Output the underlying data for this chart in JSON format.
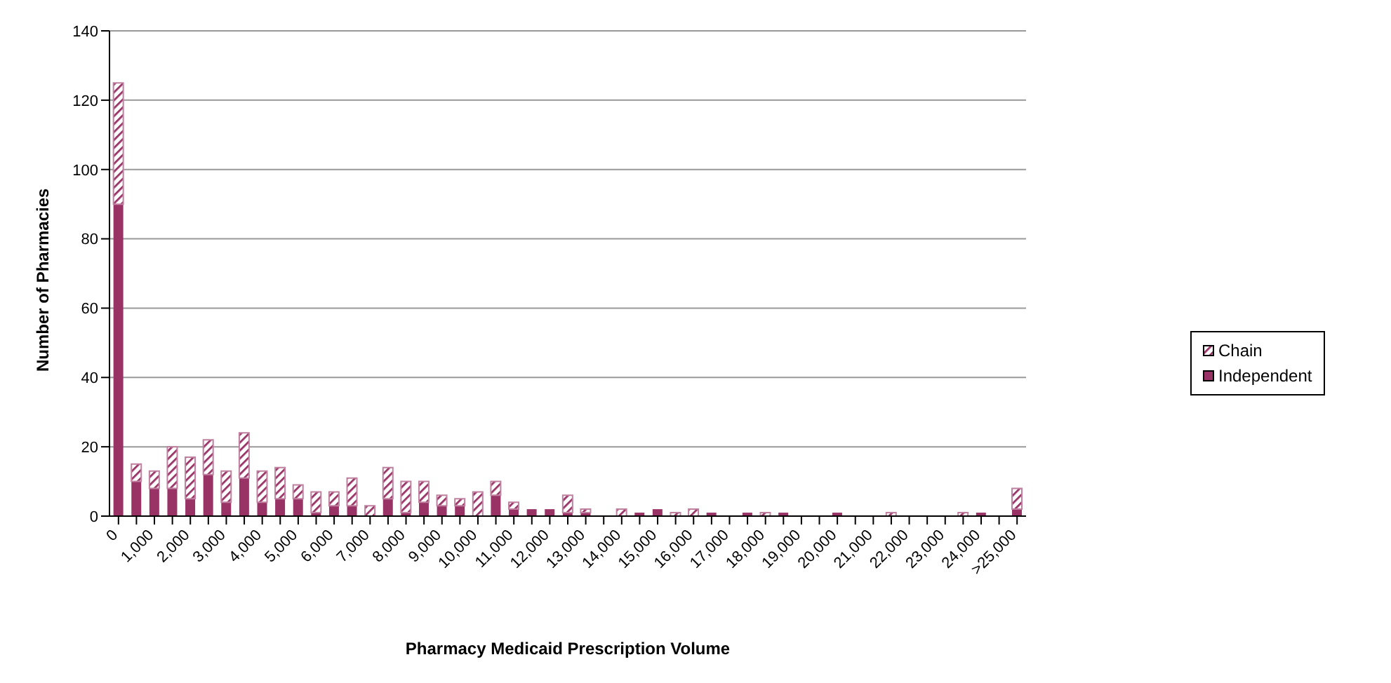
{
  "chart_data": {
    "type": "bar",
    "stacked": true,
    "xlabel": "Pharmacy Medicaid Prescription Volume",
    "ylabel": "Number of Pharmacies",
    "categories": [
      "0",
      null,
      "1,000",
      null,
      "2,000",
      null,
      "3,000",
      null,
      "4,000",
      null,
      "5,000",
      null,
      "6,000",
      null,
      "7,000",
      null,
      "8,000",
      null,
      "9,000",
      null,
      "10,000",
      null,
      "11,000",
      null,
      "12,000",
      null,
      "13,000",
      null,
      "14,000",
      null,
      "15,000",
      null,
      "16,000",
      null,
      "17,000",
      null,
      "18,000",
      null,
      "19,000",
      null,
      "20,000",
      null,
      "21,000",
      null,
      "22,000",
      null,
      "23,000",
      null,
      "24,000",
      null,
      ">25,000"
    ],
    "series": [
      {
        "name": "Independent",
        "color": "#993366",
        "values": [
          90,
          10,
          8,
          8,
          5,
          12,
          4,
          11,
          4,
          5,
          5,
          1,
          3,
          3,
          0,
          5,
          1,
          4,
          3,
          3,
          0,
          6,
          2,
          2,
          2,
          1,
          1,
          0,
          0,
          1,
          2,
          0,
          0,
          1,
          0,
          1,
          0,
          1,
          0,
          0,
          1,
          0,
          0,
          0,
          0,
          0,
          0,
          0,
          1,
          0,
          2
        ]
      },
      {
        "name": "Chain",
        "color": "#c080a0",
        "values": [
          35,
          5,
          5,
          12,
          12,
          10,
          9,
          13,
          9,
          9,
          4,
          6,
          4,
          8,
          3,
          9,
          9,
          6,
          3,
          2,
          7,
          4,
          2,
          0,
          0,
          5,
          1,
          0,
          2,
          0,
          0,
          1,
          2,
          0,
          0,
          0,
          1,
          0,
          0,
          0,
          0,
          0,
          0,
          1,
          0,
          0,
          0,
          1,
          0,
          0,
          6
        ]
      }
    ],
    "ylim": [
      0,
      140
    ],
    "yticks": [
      0,
      20,
      40,
      60,
      80,
      100,
      120,
      140
    ],
    "grid": "y",
    "legend": "right"
  }
}
